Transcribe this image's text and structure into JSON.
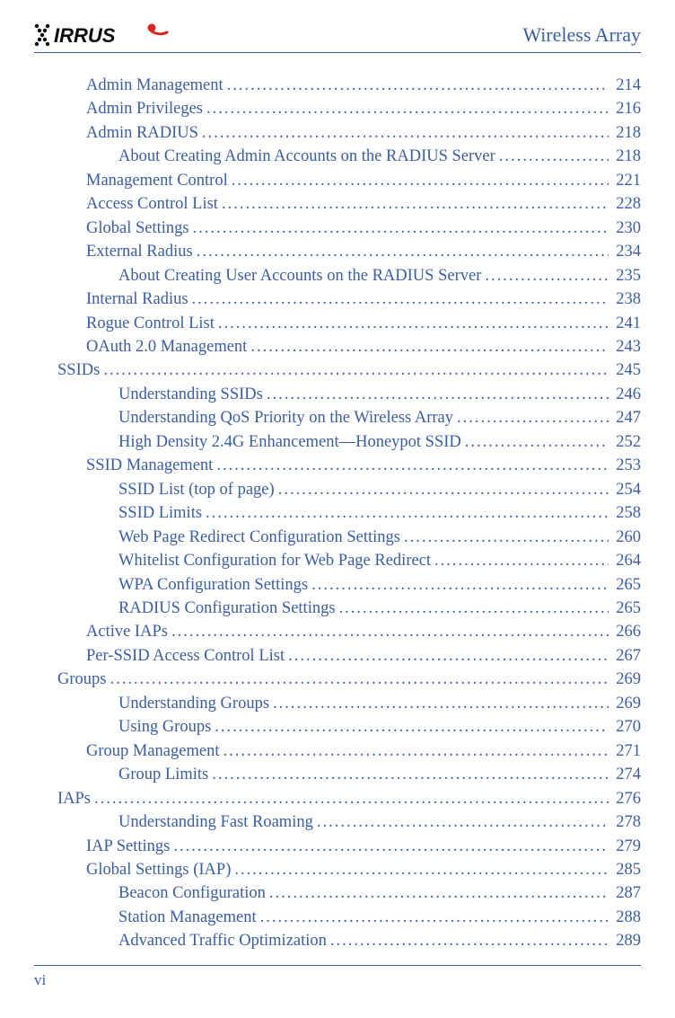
{
  "header": {
    "title": "Wireless Array",
    "brand_text": "XIRRUS",
    "brand_color": "#0a0a0a",
    "brand_accent": "#d9261c"
  },
  "footer": {
    "page_number": "vi"
  },
  "colors": {
    "text": "#3a5da8",
    "rule": "#3a5da8",
    "background": "#ffffff"
  },
  "toc": [
    {
      "label": "Admin Management",
      "page": "214",
      "indent": 1
    },
    {
      "label": "Admin Privileges",
      "page": "216",
      "indent": 1
    },
    {
      "label": "Admin RADIUS",
      "page": "218",
      "indent": 1
    },
    {
      "label": "About Creating Admin Accounts on the RADIUS Server",
      "page": "218",
      "indent": 2
    },
    {
      "label": "Management Control",
      "page": "221",
      "indent": 1
    },
    {
      "label": "Access Control List",
      "page": "228",
      "indent": 1
    },
    {
      "label": "Global Settings",
      "page": "230",
      "indent": 1
    },
    {
      "label": "External Radius",
      "page": "234",
      "indent": 1
    },
    {
      "label": "About Creating User Accounts on the RADIUS Server",
      "page": "235",
      "indent": 2
    },
    {
      "label": "Internal Radius",
      "page": "238",
      "indent": 1
    },
    {
      "label": "Rogue Control List",
      "page": "241",
      "indent": 1
    },
    {
      "label": "OAuth 2.0 Management",
      "page": "243",
      "indent": 1
    },
    {
      "label": "SSIDs",
      "page": "245",
      "indent": 0
    },
    {
      "label": "Understanding SSIDs",
      "page": "246",
      "indent": 2
    },
    {
      "label": "Understanding QoS Priority on the Wireless Array",
      "page": "247",
      "indent": 2
    },
    {
      "label": "High Density 2.4G Enhancement—Honeypot SSID",
      "page": "252",
      "indent": 2
    },
    {
      "label": "SSID Management",
      "page": "253",
      "indent": 1
    },
    {
      "label": "SSID List (top of page)",
      "page": "254",
      "indent": 2
    },
    {
      "label": "SSID Limits",
      "page": "258",
      "indent": 2
    },
    {
      "label": "Web Page Redirect Configuration Settings",
      "page": "260",
      "indent": 2
    },
    {
      "label": "Whitelist Configuration for Web Page Redirect",
      "page": "264",
      "indent": 2
    },
    {
      "label": "WPA Configuration Settings",
      "page": "265",
      "indent": 2
    },
    {
      "label": "RADIUS Configuration Settings",
      "page": "265",
      "indent": 2
    },
    {
      "label": "Active IAPs",
      "page": "266",
      "indent": 1
    },
    {
      "label": "Per-SSID Access Control List",
      "page": "267",
      "indent": 1
    },
    {
      "label": "Groups",
      "page": "269",
      "indent": 0
    },
    {
      "label": "Understanding Groups",
      "page": "269",
      "indent": 2
    },
    {
      "label": "Using Groups",
      "page": "270",
      "indent": 2
    },
    {
      "label": "Group Management",
      "page": "271",
      "indent": 1
    },
    {
      "label": "Group Limits",
      "page": "274",
      "indent": 2
    },
    {
      "label": "IAPs",
      "page": "276",
      "indent": 0
    },
    {
      "label": "Understanding Fast Roaming",
      "page": "278",
      "indent": 2
    },
    {
      "label": "IAP Settings",
      "page": "279",
      "indent": 1
    },
    {
      "label": "Global Settings (IAP)",
      "page": "285",
      "indent": 1
    },
    {
      "label": "Beacon Configuration",
      "page": "287",
      "indent": 2
    },
    {
      "label": "Station Management",
      "page": "288",
      "indent": 2
    },
    {
      "label": "Advanced Traffic Optimization",
      "page": "289",
      "indent": 2
    }
  ]
}
